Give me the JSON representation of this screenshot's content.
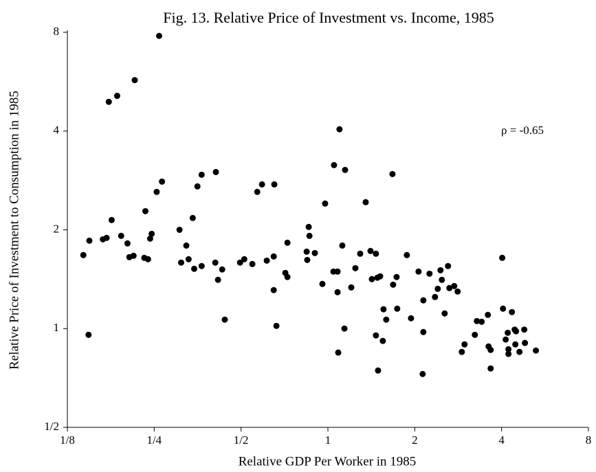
{
  "chart_data": {
    "type": "scatter",
    "title": "Fig. 13. Relative Price of Investment vs. Income, 1985",
    "x_label": "Relative GDP Per Worker in 1985",
    "y_label": "Relative Price of Investment to Consumption in 1985",
    "annotation": "ρ = -0.65",
    "xlog": 2,
    "ylog": 2,
    "grid": false,
    "color": "#000000",
    "xlim": [
      0.125,
      8
    ],
    "ylim": [
      0.5,
      8
    ],
    "xticks": [
      {
        "value": 0.125,
        "label": "1/8"
      },
      {
        "value": 0.25,
        "label": "1/4"
      },
      {
        "value": 0.5,
        "label": "1/2"
      },
      1,
      2,
      4,
      8
    ],
    "yticks": [
      {
        "value": 0.5,
        "label": "1/2"
      },
      1,
      2,
      4,
      8
    ],
    "x": [
      0.142,
      0.148,
      0.149,
      0.166,
      0.171,
      0.174,
      0.178,
      0.186,
      0.192,
      0.202,
      0.205,
      0.212,
      0.214,
      0.231,
      0.233,
      0.238,
      0.242,
      0.245,
      0.255,
      0.26,
      0.266,
      0.306,
      0.31,
      0.323,
      0.329,
      0.34,
      0.344,
      0.353,
      0.365,
      0.365,
      0.409,
      0.407,
      0.416,
      0.43,
      0.439,
      0.496,
      0.513,
      0.547,
      0.569,
      0.591,
      0.614,
      0.649,
      0.652,
      0.649,
      0.663,
      0.712,
      0.724,
      0.724,
      0.844,
      0.848,
      0.858,
      0.863,
      0.901,
      0.957,
      0.978,
      1.045,
      1.05,
      1.08,
      1.08,
      1.086,
      1.097,
      1.122,
      1.141,
      1.147,
      1.205,
      1.245,
      1.294,
      1.352,
      1.405,
      1.42,
      1.467,
      1.467,
      1.484,
      1.492,
      1.517,
      1.55,
      1.559,
      1.593,
      1.674,
      1.683,
      1.73,
      1.739,
      1.878,
      1.941,
      2.061,
      2.13,
      2.142,
      2.142,
      2.25,
      2.351,
      2.403,
      2.456,
      2.483,
      2.539,
      2.608,
      2.637,
      2.741,
      2.816,
      2.912,
      2.976,
      3.231,
      3.284,
      3.412,
      3.585,
      3.605,
      3.665,
      3.665,
      4.02,
      4.045,
      4.133,
      4.201,
      4.225,
      4.225,
      4.343,
      4.44,
      4.464,
      4.488,
      4.614,
      4.794,
      4.82,
      5.26
    ],
    "values": [
      1.675,
      0.957,
      1.853,
      1.871,
      1.89,
      4.91,
      2.142,
      5.12,
      1.917,
      1.818,
      1.651,
      1.667,
      5.72,
      1.643,
      2.28,
      1.627,
      1.88,
      1.945,
      2.61,
      7.8,
      2.805,
      2.0,
      1.589,
      1.791,
      1.627,
      2.173,
      1.521,
      2.713,
      1.551,
      2.944,
      3.0,
      1.589,
      1.408,
      1.514,
      1.065,
      1.589,
      1.627,
      1.573,
      2.61,
      2.751,
      1.611,
      1.31,
      2.751,
      1.659,
      1.019,
      1.478,
      1.436,
      1.827,
      1.716,
      1.619,
      2.041,
      1.917,
      1.699,
      1.368,
      2.405,
      1.492,
      3.15,
      1.492,
      1.291,
      0.845,
      4.05,
      1.791,
      1.0,
      3.045,
      1.335,
      1.528,
      1.691,
      2.428,
      1.724,
      1.415,
      1.691,
      0.953,
      1.429,
      0.745,
      1.443,
      0.917,
      1.145,
      1.065,
      2.958,
      1.361,
      1.436,
      1.15,
      1.675,
      1.075,
      1.492,
      0.727,
      0.976,
      1.219,
      1.47,
      1.248,
      1.322,
      1.506,
      1.408,
      1.112,
      1.551,
      1.329,
      1.348,
      1.297,
      0.849,
      0.895,
      0.957,
      1.054,
      1.049,
      1.101,
      0.882,
      0.756,
      0.861,
      1.643,
      1.15,
      0.926,
      0.971,
      0.837,
      0.865,
      1.123,
      0.993,
      0.895,
      0.981,
      0.849,
      0.993,
      0.904,
      0.857
    ]
  }
}
